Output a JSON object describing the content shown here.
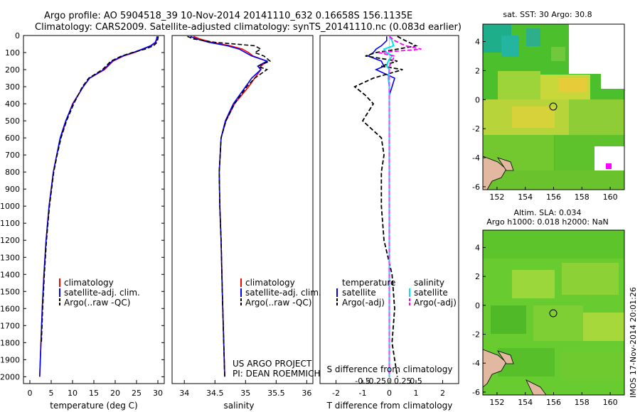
{
  "header": {
    "line1": "Argo profile: AO 5904518_39 10-Nov-2014 20141110_632 0.16658S 156.1135E",
    "line2": "Climatology: CARS2009. Satellite-adjusted climatology: synTS_20141110.nc (0.083d earlier)"
  },
  "credits": {
    "project": "US ARGO PROJECT",
    "pi": "PI: DEAN ROEMMICH",
    "imos": "IMOS 17-Nov-2014 20:01:26"
  },
  "colors": {
    "climatology": "#ff0000",
    "satellite": "#0000ff",
    "argo": "#000000",
    "sal_satellite": "#00e5ee",
    "sal_argo": "#ff00ff"
  },
  "chart_data": [
    {
      "id": "temperature",
      "type": "line",
      "xlabel": "temperature (deg C)",
      "xlim": [
        -1.5,
        31.5
      ],
      "ylim": [
        2040,
        0
      ],
      "x_ticks": [
        0,
        5,
        10,
        15,
        20,
        25,
        30
      ],
      "y_ticks": [
        0,
        100,
        200,
        300,
        400,
        500,
        600,
        700,
        800,
        900,
        1000,
        1100,
        1200,
        1300,
        1400,
        1500,
        1600,
        1700,
        1800,
        1900,
        2000
      ],
      "legend": [
        "climatology",
        "satellite-adj. clim.",
        "Argo(..raw -QC)"
      ],
      "depth": [
        5,
        20,
        40,
        60,
        80,
        100,
        120,
        150,
        200,
        250,
        300,
        400,
        500,
        600,
        700,
        800,
        900,
        1000,
        1200,
        1400,
        1600,
        1800,
        2000
      ],
      "series": [
        {
          "name": "climatology",
          "values": [
            29.9,
            29.8,
            29.5,
            28.5,
            26.5,
            24.5,
            22.0,
            19.5,
            17.5,
            14.0,
            12.5,
            10.0,
            8.5,
            7.2,
            6.3,
            5.5,
            5.0,
            4.5,
            3.8,
            3.3,
            2.9,
            2.6,
            2.3
          ]
        },
        {
          "name": "satellite-adj. clim.",
          "values": [
            29.8,
            29.7,
            29.4,
            28.3,
            26.3,
            24.2,
            21.8,
            19.3,
            17.3,
            14.0,
            12.5,
            10.1,
            8.4,
            7.1,
            6.3,
            5.5,
            5.0,
            4.5,
            3.8,
            3.3,
            2.9,
            2.6,
            2.3
          ]
        },
        {
          "name": "Argo(..raw -QC)",
          "values": [
            30.1,
            30.0,
            29.8,
            29.0,
            27.0,
            24.0,
            21.5,
            19.0,
            17.0,
            13.8,
            12.3,
            10.3,
            8.6,
            7.3,
            6.4,
            5.6,
            5.1,
            4.6,
            3.9,
            3.4,
            3.0,
            2.7,
            null
          ]
        }
      ]
    },
    {
      "id": "salinity",
      "type": "line",
      "xlabel": "salinity",
      "xlim": [
        33.8,
        36.1
      ],
      "ylim": [
        2040,
        0
      ],
      "x_ticks": [
        34,
        34.5,
        35,
        35.5,
        36
      ],
      "x_tick_labels": [
        "34",
        "34.5",
        "35",
        "35.5",
        "36"
      ],
      "legend": [
        "climatology",
        "satellite-adj. clim.",
        "Argo(..raw -QC)"
      ],
      "depth": [
        5,
        20,
        40,
        60,
        80,
        100,
        120,
        150,
        180,
        200,
        250,
        300,
        400,
        500,
        600,
        800,
        1000,
        1200,
        1500,
        2000
      ],
      "series": [
        {
          "name": "climatology",
          "values": [
            34.15,
            34.25,
            34.45,
            34.75,
            34.95,
            35.05,
            35.12,
            35.35,
            35.25,
            35.25,
            35.15,
            35.05,
            34.82,
            34.68,
            34.6,
            34.57,
            34.58,
            34.6,
            34.62,
            34.66
          ]
        },
        {
          "name": "satellite-adj. clim.",
          "values": [
            34.1,
            34.2,
            34.4,
            34.7,
            34.9,
            35.0,
            35.1,
            35.35,
            35.2,
            35.25,
            35.1,
            35.0,
            34.8,
            34.67,
            34.6,
            34.57,
            34.58,
            34.6,
            34.62,
            34.66
          ]
        },
        {
          "name": "Argo(..raw -QC)",
          "values": [
            34.05,
            34.15,
            34.5,
            35.15,
            35.25,
            35.15,
            35.3,
            35.4,
            35.2,
            35.35,
            35.15,
            35.02,
            34.82,
            34.68,
            34.6,
            34.57,
            34.58,
            34.6,
            34.62,
            34.66
          ]
        }
      ]
    },
    {
      "id": "differences",
      "type": "line",
      "xlabel_top": "S difference from climatology",
      "xlabel_bottom": "T difference from climatology",
      "xlim": [
        -2.6,
        2.6
      ],
      "ylim": [
        2040,
        0
      ],
      "s_ticks": [
        -0.5,
        -0.25,
        0,
        0.25,
        0.5
      ],
      "s_tick_labels": [
        "-0.5",
        "-0.25",
        "0",
        "0.25",
        "0.5"
      ],
      "t_ticks": [
        -2,
        -1,
        0,
        1,
        2
      ],
      "legend_headers": [
        "temperature",
        "salinity"
      ],
      "legend": [
        "satellite",
        "Argo(-adj)",
        "satellite",
        "Argo(-adj)"
      ],
      "depth": [
        5,
        30,
        60,
        80,
        100,
        120,
        150,
        180,
        200,
        250,
        300,
        350,
        400,
        450,
        500,
        600,
        700,
        800,
        1000,
        1200,
        1400,
        1600,
        1800,
        1900,
        2000
      ],
      "series": [
        {
          "name": "T satellite",
          "values": [
            -0.1,
            -0.1,
            -0.3,
            -0.5,
            -0.6,
            -0.8,
            -0.3,
            -0.2,
            -0.5,
            0.2,
            0.1,
            0.0,
            0.0,
            0.0,
            0.0,
            0.0,
            0.0,
            0.0,
            0.0,
            0.0,
            0.0,
            0.0,
            0.0,
            0.0,
            0.0
          ]
        },
        {
          "name": "T Argo(-adj)",
          "values": [
            0.3,
            0.6,
            1.0,
            0.3,
            -0.5,
            -0.9,
            0.3,
            -0.3,
            0.5,
            -0.6,
            -1.3,
            -0.9,
            -0.6,
            -0.8,
            -1.0,
            -0.3,
            -0.2,
            -0.3,
            -0.3,
            -0.2,
            0.1,
            0.2,
            0.1,
            0.2,
            0.3
          ]
        },
        {
          "name": "S satellite",
          "values": [
            0.0,
            0.05,
            0.08,
            -0.1,
            -0.05,
            0.05,
            -0.02,
            -0.05,
            0.0,
            -0.02,
            0.0,
            0.0,
            0.0,
            0.0,
            0.0,
            0.0,
            0.0,
            0.0,
            0.0,
            0.0,
            0.0,
            0.0,
            0.0,
            0.0,
            0.0
          ]
        },
        {
          "name": "S Argo(-adj)",
          "values": [
            0.0,
            0.1,
            0.3,
            0.6,
            -0.2,
            0.1,
            0.05,
            0.0,
            0.0,
            0.0,
            0.0,
            0.0,
            0.0,
            0.0,
            0.0,
            0.0,
            0.0,
            0.0,
            0.0,
            0.0,
            0.0,
            0.0,
            0.0,
            0.0,
            0.0
          ]
        }
      ]
    },
    {
      "id": "sst-map",
      "type": "heatmap",
      "title": "sat. SST: 30 Argo: 30.8",
      "xlim": [
        151,
        161
      ],
      "ylim": [
        -6.2,
        5.2
      ],
      "x_ticks": [
        152,
        154,
        156,
        158,
        160
      ],
      "y_ticks": [
        -6,
        -4,
        -2,
        0,
        2,
        4
      ],
      "argo_position": [
        156.1,
        -0.17
      ]
    },
    {
      "id": "sla-map",
      "type": "heatmap",
      "title_line1": "Altim. SLA: 0.034",
      "title_line2": "Argo h1000: 0.018 h2000: NaN",
      "xlim": [
        151,
        161
      ],
      "ylim": [
        -6.2,
        5.2
      ],
      "x_ticks": [
        152,
        154,
        156,
        158,
        160
      ],
      "y_ticks": [
        -6,
        -4,
        -2,
        0,
        2,
        4
      ],
      "argo_position": [
        156.1,
        -0.17
      ]
    }
  ]
}
